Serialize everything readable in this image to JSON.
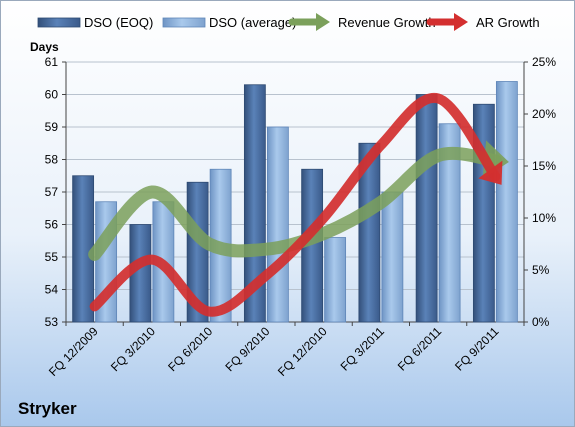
{
  "chart_data": {
    "type": "bar",
    "title": "Stryker",
    "ylabel": "Days",
    "categories": [
      "FQ 12/2009",
      "FQ 3/2010",
      "FQ 6/2010",
      "FQ 9/2010",
      "FQ 12/2010",
      "FQ 3/2011",
      "FQ 6/2011",
      "FQ 9/2011"
    ],
    "y_ticks": [
      "53",
      "54",
      "55",
      "56",
      "57",
      "58",
      "59",
      "60",
      "61"
    ],
    "y2_ticks": [
      "0%",
      "5%",
      "10%",
      "15%",
      "20%",
      "25%"
    ],
    "ylim": [
      53,
      61
    ],
    "y2lim": [
      0,
      25
    ],
    "legend_position": "top",
    "grid": true,
    "series": [
      {
        "name": "DSO (EOQ)",
        "kind": "bar",
        "axis": "left",
        "color": "#4A6FA0",
        "values": [
          57.5,
          56.0,
          57.3,
          60.3,
          57.7,
          58.5,
          60.0,
          59.7
        ]
      },
      {
        "name": "DSO (average)",
        "kind": "bar",
        "axis": "left",
        "color": "#8FB4DD",
        "values": [
          56.7,
          56.7,
          57.7,
          59.0,
          55.6,
          57.0,
          59.1,
          60.4
        ]
      },
      {
        "name": "Revenue Growth",
        "kind": "line",
        "axis": "right",
        "color": "#7BA05B",
        "values": [
          6.5,
          12.5,
          7.5,
          7.0,
          8.5,
          11.5,
          16.0,
          15.5
        ]
      },
      {
        "name": "AR Growth",
        "kind": "line",
        "axis": "right",
        "color": "#D32F2F",
        "values": [
          1.5,
          6.0,
          1.0,
          4.5,
          10.0,
          17.0,
          21.5,
          14.0
        ]
      }
    ]
  }
}
